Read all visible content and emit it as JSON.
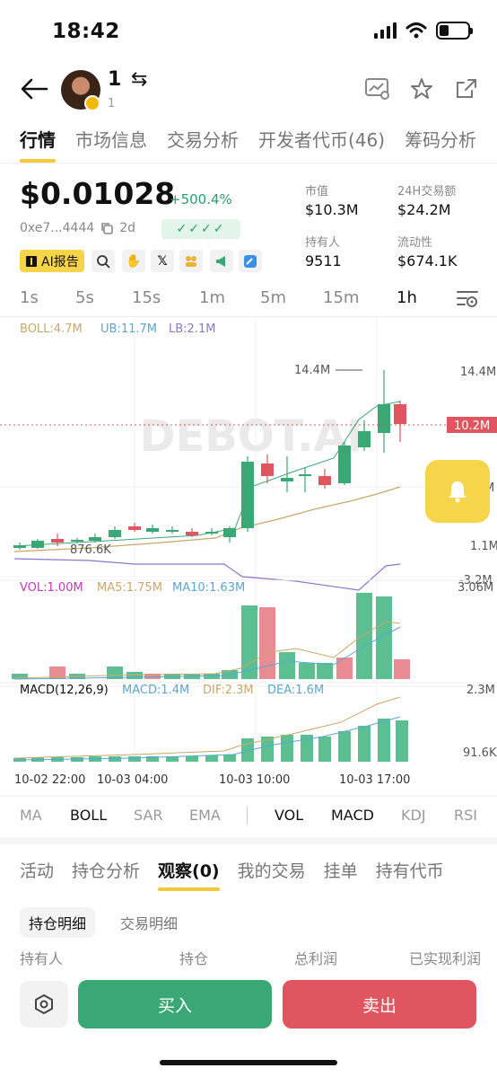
{
  "status_bar": {
    "time": "18:42"
  },
  "header": {
    "token_name": "1",
    "token_sub": "1",
    "swap_symbol": "⇆"
  },
  "tabs": [
    "行情",
    "市场信息",
    "交易分析",
    "开发者代币(46)",
    "筹码分析"
  ],
  "price": {
    "value": "$0.01028",
    "change": "+500.4%",
    "address": "0xe7...4444",
    "age": "2d",
    "checks": "✓✓✓✓"
  },
  "stats": {
    "market_cap_label": "市值",
    "market_cap": "$10.3M",
    "volume_label": "24H交易额",
    "volume": "$24.2M",
    "holders_label": "持有人",
    "holders": "9511",
    "liquidity_label": "流动性",
    "liquidity": "$674.1K"
  },
  "ai_report_label": "AI报告",
  "intervals": [
    "1s",
    "5s",
    "15s",
    "1m",
    "5m",
    "15m",
    "1h"
  ],
  "active_interval": "1h",
  "chart_labels": {
    "boll": "BOLL:4.7M",
    "ub": "UB:11.7M",
    "lb": "LB:2.1M",
    "vol": "VOL:1.00M",
    "ma5": "MA5:1.75M",
    "ma10": "MA10:1.63M",
    "macd": "MACD(12,26,9)",
    "macd_val": "MACD:1.4M",
    "dif": "DIF:2.3M",
    "dea": "DEA:1.6M",
    "high_tag": "14.4M",
    "low_tag": "876.6K",
    "watermark": "DEBOT.AI"
  },
  "chart_data": {
    "type": "candlestick",
    "y_axis_labels": [
      "14.4M",
      "10.2M",
      "M",
      "1.1M",
      "-3.2M"
    ],
    "current_price_label": "10.2M",
    "volume_axis_labels": [
      "3.06M"
    ],
    "macd_axis_labels": [
      "2.3M",
      "91.6K"
    ],
    "x_labels": [
      "10-02 22:00",
      "10-03 04:00",
      "10-03 10:00",
      "10-03 17:00"
    ]
  },
  "indicator_tabs_main": [
    "MA",
    "BOLL",
    "SAR",
    "EMA"
  ],
  "indicator_tabs_sub": [
    "VOL",
    "MACD",
    "KDJ",
    "RSI"
  ],
  "bottom_tabs": [
    "活动",
    "持仓分析",
    "观察(0)",
    "我的交易",
    "挂单",
    "持有代币"
  ],
  "sub_tabs": [
    "持仓明细",
    "交易明细"
  ],
  "columns": [
    "持有人",
    "持仓",
    "总利润",
    "已实现利润"
  ],
  "actions": {
    "buy": "买入",
    "sell": "卖出"
  },
  "colors": {
    "up": "#3aa874",
    "down": "#e05560",
    "accent": "#f3c93b"
  }
}
